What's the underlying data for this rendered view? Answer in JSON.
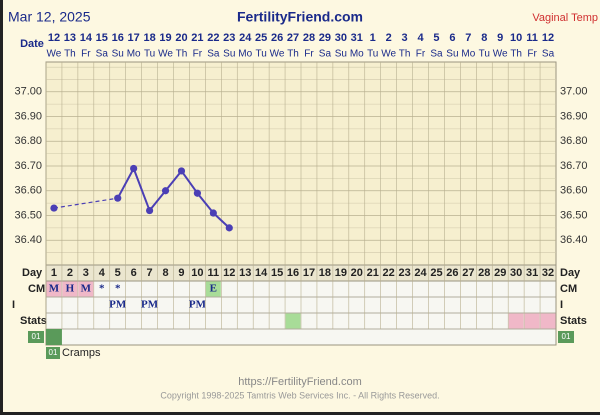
{
  "header": {
    "date": "Mar 12, 2025",
    "site": "FertilityFriend.com",
    "temp_type": "Vaginal Temp"
  },
  "chart_data": {
    "type": "line",
    "x_label": "Date",
    "x": [
      1,
      2,
      3,
      4,
      5,
      6,
      7,
      8,
      9,
      10,
      11,
      12,
      13,
      14,
      15,
      16,
      17,
      18,
      19,
      20,
      21,
      22,
      23,
      24,
      25,
      26,
      27,
      28,
      29,
      30,
      31,
      32
    ],
    "xlim": [
      0.5,
      32.5
    ],
    "dates": [
      12,
      13,
      14,
      15,
      16,
      17,
      18,
      19,
      20,
      21,
      22,
      23,
      24,
      25,
      26,
      27,
      28,
      29,
      30,
      31,
      1,
      2,
      3,
      4,
      5,
      6,
      7,
      8,
      9,
      10,
      11,
      12
    ],
    "weekdays": [
      "We",
      "Th",
      "Fr",
      "Sa",
      "Su",
      "Mo",
      "Tu",
      "We",
      "Th",
      "Fr",
      "Sa",
      "Su",
      "Mo",
      "Tu",
      "We",
      "Th",
      "Fr",
      "Sa",
      "Su",
      "Mo",
      "Tu",
      "We",
      "Th",
      "Fr",
      "Sa",
      "Su",
      "Mo",
      "Tu",
      "We",
      "Th",
      "Fr",
      "Sa"
    ],
    "day_label": "Day",
    "series": [
      {
        "color": "#4b3fb5",
        "values": [
          36.53,
          null,
          null,
          null,
          36.57,
          36.69,
          36.52,
          36.6,
          36.68,
          36.59,
          36.51,
          36.45,
          null,
          null,
          null,
          null,
          null,
          null,
          null,
          null,
          null,
          null,
          null,
          null,
          null,
          null,
          null,
          null,
          null,
          null,
          null,
          null
        ]
      }
    ],
    "ylim": [
      36.3,
      37.1
    ],
    "yticks": [
      {
        "value": 36.4,
        "label": "36.40"
      },
      {
        "value": 36.5,
        "label": "36.50"
      },
      {
        "value": 36.6,
        "label": "36.60"
      },
      {
        "value": 36.7,
        "label": "36.70"
      },
      {
        "value": 36.8,
        "label": "36.80"
      },
      {
        "value": 36.9,
        "label": "36.90"
      },
      {
        "value": 37.0,
        "label": "37.00"
      }
    ],
    "grid": true
  },
  "rows": [
    {
      "label": "CM",
      "cells": [
        "M",
        "H",
        "M",
        "*",
        "*",
        null,
        null,
        null,
        null,
        null,
        "E",
        null,
        null,
        null,
        null,
        null,
        null,
        null,
        null,
        null,
        null,
        null,
        null,
        null,
        null,
        null,
        null,
        null,
        null,
        null,
        null,
        null
      ],
      "colors": [
        "#f0b8c8",
        "#f0b8c8",
        "#f0b8c8",
        null,
        null,
        null,
        null,
        null,
        null,
        null,
        "#a8dc98",
        null,
        null,
        null,
        null,
        null,
        null,
        null,
        null,
        null,
        null,
        null,
        null,
        null,
        null,
        null,
        null,
        null,
        null,
        null,
        null,
        null
      ]
    },
    {
      "label": "I",
      "cells": [
        null,
        null,
        null,
        null,
        "PM",
        null,
        "PM",
        null,
        null,
        "PM",
        null,
        null,
        null,
        null,
        null,
        null,
        null,
        null,
        null,
        null,
        null,
        null,
        null,
        null,
        null,
        null,
        null,
        null,
        null,
        null,
        null,
        null
      ]
    },
    {
      "label": "Stats",
      "colors": [
        null,
        null,
        null,
        null,
        null,
        null,
        null,
        null,
        null,
        null,
        null,
        null,
        null,
        null,
        null,
        "#a8dc98",
        null,
        null,
        null,
        null,
        null,
        null,
        null,
        null,
        null,
        null,
        null,
        null,
        null,
        "#f0b8c8",
        "#f0b8c8",
        "#f0b8c8"
      ]
    }
  ],
  "symptom": {
    "code": "01",
    "label": "Cramps",
    "color": "#5a9a5a"
  },
  "footer": {
    "url": "https://FertilityFriend.com",
    "copyright": "Copyright 1998-2025 Tamtris Web Services Inc. - All Rights Reserved."
  }
}
